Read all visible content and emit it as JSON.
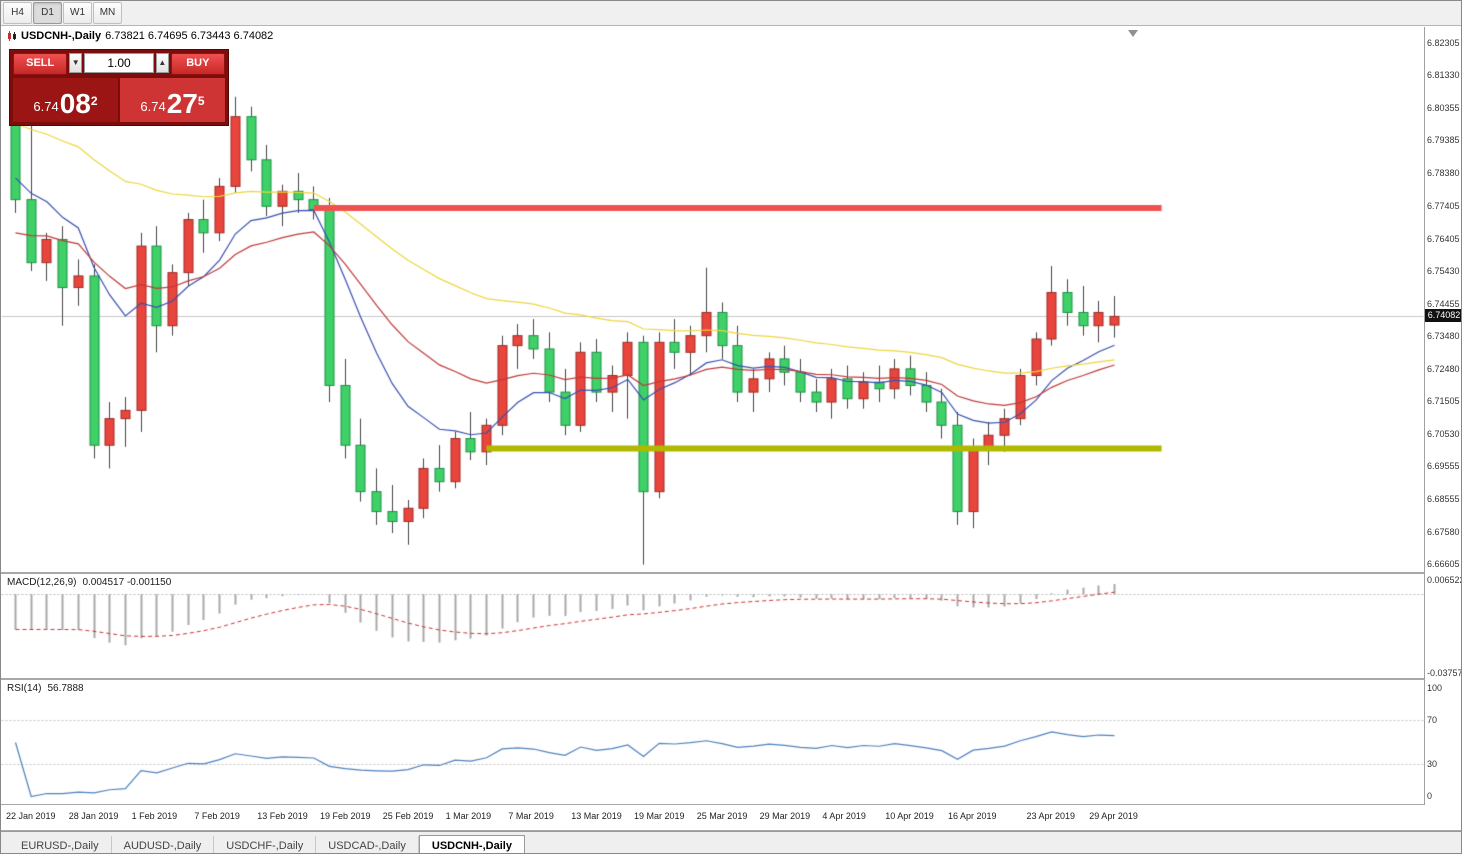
{
  "toolbar": {
    "timeframes": [
      "H4",
      "D1",
      "W1",
      "MN"
    ],
    "active": "D1"
  },
  "chart": {
    "symbol": "USDCNH-,Daily",
    "ohlc_text": "6.73821 6.74695 6.73443 6.74082"
  },
  "trade_panel": {
    "sell_label": "SELL",
    "buy_label": "BUY",
    "volume": "1.00",
    "decrease_glyph": "▼",
    "increase_glyph": "▲",
    "sell_price": {
      "prefix": "6.74",
      "main": "08",
      "sup": "2"
    },
    "buy_price": {
      "prefix": "6.74",
      "main": "27",
      "sup": "5"
    }
  },
  "price_axis": {
    "labels": [
      "6.82305",
      "6.81330",
      "6.80355",
      "6.79385",
      "6.78380",
      "6.77405",
      "6.76405",
      "6.75430",
      "6.74455",
      "6.73480",
      "6.72480",
      "6.71505",
      "6.70530",
      "6.69555",
      "6.68555",
      "6.67580",
      "6.66605"
    ],
    "current": "6.74082"
  },
  "macd": {
    "name": "MACD(12,26,9)",
    "values": "0.004517 -0.001150",
    "fast": 12,
    "slow": 26,
    "signal": 9,
    "scale_top": "0.006522",
    "scale_bottom": "-0.03757",
    "range": [
      -0.03757,
      0.006522
    ]
  },
  "rsi": {
    "name": "RSI(14)",
    "value": "56.7888",
    "period": 14,
    "scale_labels": [
      "100",
      "70",
      "30",
      "0"
    ],
    "levels": [
      70,
      30
    ]
  },
  "bottom_tabs": {
    "items": [
      "EURUSD-,Daily",
      "AUDUSD-,Daily",
      "USDCHF-,Daily",
      "USDCAD-,Daily",
      "USDCNH-,Daily"
    ],
    "active": "USDCNH-,Daily"
  },
  "chart_data": {
    "type": "candlestick",
    "symbol": "USDCNH",
    "timeframe": "Daily",
    "title": "USDCNH-,Daily",
    "last_ohlc": {
      "open": 6.73821,
      "high": 6.74695,
      "low": 6.73443,
      "close": 6.74082
    },
    "price_range": [
      6.66605,
      6.82305
    ],
    "up_color": "#e8453c",
    "down_color": "#3fd168",
    "current_price": 6.74082,
    "candles": [
      [
        6.801,
        6.8045,
        6.772,
        6.776
      ],
      [
        6.776,
        6.7985,
        6.7545,
        6.757
      ],
      [
        6.757,
        6.766,
        6.7515,
        6.764
      ],
      [
        6.764,
        6.768,
        6.738,
        6.7495
      ],
      [
        6.7495,
        6.758,
        6.744,
        6.753
      ],
      [
        6.753,
        6.7565,
        6.698,
        6.702
      ],
      [
        6.702,
        6.715,
        6.695,
        6.71
      ],
      [
        6.71,
        6.7165,
        6.7015,
        6.7125
      ],
      [
        6.7125,
        6.766,
        6.706,
        6.762
      ],
      [
        6.762,
        6.768,
        6.73,
        6.738
      ],
      [
        6.738,
        6.7565,
        6.735,
        6.754
      ],
      [
        6.754,
        6.772,
        6.75,
        6.77
      ],
      [
        6.77,
        6.776,
        6.76,
        6.766
      ],
      [
        6.766,
        6.7825,
        6.7635,
        6.78
      ],
      [
        6.78,
        6.807,
        6.778,
        6.801
      ],
      [
        6.801,
        6.804,
        6.7845,
        6.788
      ],
      [
        6.788,
        6.7925,
        6.771,
        6.774
      ],
      [
        6.774,
        6.7805,
        6.768,
        6.7785
      ],
      [
        6.7785,
        6.784,
        6.772,
        6.776
      ],
      [
        6.776,
        6.78,
        6.77,
        6.773
      ],
      [
        6.773,
        6.7765,
        6.715,
        6.72
      ],
      [
        6.72,
        6.728,
        6.698,
        6.702
      ],
      [
        6.702,
        6.71,
        6.685,
        6.688
      ],
      [
        6.688,
        6.695,
        6.678,
        6.682
      ],
      [
        6.682,
        6.69,
        6.6755,
        6.679
      ],
      [
        6.679,
        6.6855,
        6.672,
        6.683
      ],
      [
        6.683,
        6.698,
        6.68,
        6.695
      ],
      [
        6.695,
        6.702,
        6.688,
        6.691
      ],
      [
        6.691,
        6.706,
        6.689,
        6.704
      ],
      [
        6.704,
        6.712,
        6.6975,
        6.7
      ],
      [
        6.7,
        6.71,
        6.696,
        6.708
      ],
      [
        6.708,
        6.735,
        6.705,
        6.732
      ],
      [
        6.732,
        6.7385,
        6.725,
        6.735
      ],
      [
        6.735,
        6.74,
        6.728,
        6.731
      ],
      [
        6.731,
        6.736,
        6.715,
        6.718
      ],
      [
        6.718,
        6.725,
        6.705,
        6.708
      ],
      [
        6.708,
        6.733,
        6.706,
        6.73
      ],
      [
        6.73,
        6.734,
        6.715,
        6.718
      ],
      [
        6.718,
        6.726,
        6.712,
        6.723
      ],
      [
        6.723,
        6.736,
        6.71,
        6.733
      ],
      [
        6.733,
        6.735,
        6.666,
        6.688
      ],
      [
        6.688,
        6.736,
        6.686,
        6.733
      ],
      [
        6.733,
        6.74,
        6.725,
        6.73
      ],
      [
        6.73,
        6.738,
        6.723,
        6.735
      ],
      [
        6.735,
        6.7555,
        6.73,
        6.742
      ],
      [
        6.742,
        6.745,
        6.728,
        6.732
      ],
      [
        6.732,
        6.738,
        6.715,
        6.718
      ],
      [
        6.718,
        6.725,
        6.712,
        6.722
      ],
      [
        6.722,
        6.73,
        6.718,
        6.728
      ],
      [
        6.728,
        6.732,
        6.72,
        6.724
      ],
      [
        6.724,
        6.728,
        6.715,
        6.718
      ],
      [
        6.718,
        6.722,
        6.712,
        6.715
      ],
      [
        6.715,
        6.725,
        6.71,
        6.722
      ],
      [
        6.722,
        6.726,
        6.713,
        6.716
      ],
      [
        6.716,
        6.724,
        6.713,
        6.721
      ],
      [
        6.721,
        6.726,
        6.715,
        6.719
      ],
      [
        6.719,
        6.728,
        6.716,
        6.725
      ],
      [
        6.725,
        6.729,
        6.717,
        6.72
      ],
      [
        6.72,
        6.724,
        6.712,
        6.715
      ],
      [
        6.715,
        6.719,
        6.704,
        6.708
      ],
      [
        6.708,
        6.712,
        6.678,
        6.682
      ],
      [
        6.682,
        6.704,
        6.677,
        6.701
      ],
      [
        6.701,
        6.709,
        6.696,
        6.705
      ],
      [
        6.705,
        6.713,
        6.7,
        6.71
      ],
      [
        6.71,
        6.725,
        6.708,
        6.723
      ],
      [
        6.723,
        6.736,
        6.72,
        6.734
      ],
      [
        6.734,
        6.756,
        6.732,
        6.748
      ],
      [
        6.748,
        6.752,
        6.738,
        6.742
      ],
      [
        6.742,
        6.75,
        6.735,
        6.738
      ],
      [
        6.738,
        6.7455,
        6.733,
        6.742
      ],
      [
        6.73821,
        6.74695,
        6.73443,
        6.74082
      ]
    ],
    "x_tick_indices": [
      0,
      4,
      8,
      12,
      16,
      20,
      24,
      28,
      32,
      36,
      40,
      44,
      48,
      52,
      56,
      60,
      65,
      69
    ],
    "x_tick_labels": [
      "22 Jan 2019",
      "28 Jan 2019",
      "1 Feb 2019",
      "7 Feb 2019",
      "13 Feb 2019",
      "19 Feb 2019",
      "25 Feb 2019",
      "1 Mar 2019",
      "7 Mar 2019",
      "13 Mar 2019",
      "19 Mar 2019",
      "25 Mar 2019",
      "29 Mar 2019",
      "4 Apr 2019",
      "10 Apr 2019",
      "16 Apr 2019",
      "23 Apr 2019",
      "29 Apr 2019"
    ],
    "hlines": [
      {
        "price": 6.7735,
        "color": "#ef5350",
        "thickness": 6,
        "start_index": 19,
        "end_index": 73
      },
      {
        "price": 6.701,
        "color": "#b0b800",
        "thickness": 6,
        "start_index": 30,
        "end_index": 73
      }
    ],
    "ma_lines": [
      {
        "type": "ema",
        "period": 10,
        "color": "#3a50b0"
      },
      {
        "type": "ema",
        "period": 21,
        "color": "#c03a3a"
      },
      {
        "type": "ema",
        "period": 45,
        "color": "#ecd63e"
      }
    ]
  }
}
